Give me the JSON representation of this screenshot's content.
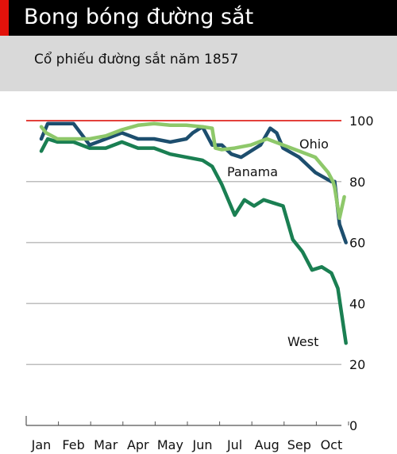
{
  "header": {
    "title": "Bong bóng đường sắt",
    "subtitle": "Cổ phiếu đường sắt năm 1857",
    "accent_color": "#e3120b"
  },
  "chart_data": {
    "type": "line",
    "title": "Bong bóng đường sắt",
    "subtitle": "Cổ phiếu đường sắt năm 1857",
    "xlabel": "",
    "ylabel": "",
    "x_categories": [
      "Jan",
      "Feb",
      "Mar",
      "Apr",
      "May",
      "Jun",
      "Jul",
      "Aug",
      "Sep",
      "Oct"
    ],
    "y_ticks": [
      0,
      20,
      40,
      60,
      80,
      100
    ],
    "ylim": [
      0,
      100
    ],
    "y_axis_side": "right",
    "grid": true,
    "reference_line": {
      "value": 100,
      "color": "#e3413b"
    },
    "series": [
      {
        "name": "Ohio",
        "color": "#8ec86a",
        "x": [
          0.0,
          0.15,
          0.5,
          1.0,
          1.5,
          2.0,
          2.5,
          3.0,
          3.5,
          4.0,
          4.5,
          5.0,
          5.3,
          5.4,
          5.6,
          6.0,
          6.5,
          7.0,
          7.5,
          8.0,
          8.5,
          8.9,
          9.05,
          9.1,
          9.25,
          9.4
        ],
        "y": [
          98,
          96,
          94,
          94,
          94,
          95,
          97,
          98.5,
          99,
          98.5,
          98.5,
          98,
          97.5,
          91,
          90.5,
          91,
          92,
          94,
          92,
          90,
          88,
          83,
          80,
          78,
          68,
          75
        ]
      },
      {
        "name": "Panama",
        "color": "#1d4e6e",
        "x": [
          0.0,
          0.2,
          0.5,
          1.0,
          1.5,
          2.0,
          2.5,
          3.0,
          3.5,
          4.0,
          4.5,
          4.7,
          5.0,
          5.3,
          5.6,
          5.9,
          6.2,
          6.5,
          6.8,
          7.1,
          7.3,
          7.5,
          8.0,
          8.5,
          9.0,
          9.1,
          9.25,
          9.45
        ],
        "y": [
          94,
          99,
          99,
          99,
          92,
          94,
          96,
          94,
          94,
          93,
          94,
          96,
          98,
          92,
          92,
          89,
          88,
          90,
          92,
          97.5,
          96,
          91,
          88,
          83,
          80,
          80,
          66,
          60
        ]
      },
      {
        "name": "West",
        "color": "#1a7f52",
        "x": [
          0.0,
          0.2,
          0.5,
          1.0,
          1.5,
          2.0,
          2.5,
          3.0,
          3.5,
          4.0,
          4.5,
          5.0,
          5.3,
          5.6,
          6.0,
          6.3,
          6.6,
          6.9,
          7.2,
          7.5,
          7.8,
          8.1,
          8.4,
          8.7,
          9.0,
          9.2,
          9.45
        ],
        "y": [
          90,
          94,
          93,
          93,
          91,
          91,
          93,
          91,
          91,
          89,
          88,
          87,
          85,
          79,
          69,
          74,
          72,
          74,
          73,
          72,
          61,
          57,
          51,
          52,
          50,
          45,
          27
        ]
      }
    ]
  }
}
